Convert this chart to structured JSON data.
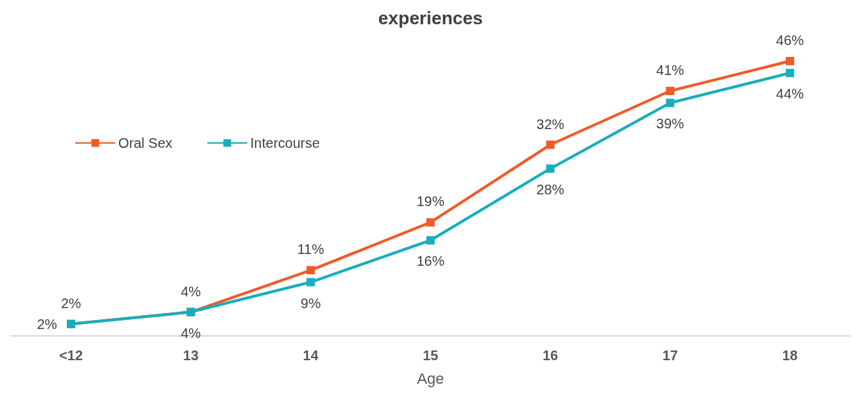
{
  "chart_data": {
    "type": "line",
    "title": "experiences",
    "xlabel": "Age",
    "categories": [
      "<12",
      "13",
      "14",
      "15",
      "16",
      "17",
      "18"
    ],
    "series": [
      {
        "name": "Oral Sex",
        "color": "#f05a28",
        "values": [
          2,
          4,
          11,
          19,
          32,
          41,
          46
        ],
        "value_labels": [
          "2%",
          "4%",
          "11%",
          "19%",
          "32%",
          "41%",
          "46%"
        ]
      },
      {
        "name": "Intercourse",
        "color": "#17aebd",
        "values": [
          2,
          4,
          9,
          16,
          28,
          39,
          44
        ],
        "value_labels": [
          "2%",
          "4%",
          "9%",
          "16%",
          "28%",
          "39%",
          "44%"
        ]
      }
    ],
    "legend": "left",
    "marker": "square",
    "line_style": "solid",
    "grid": false
  }
}
